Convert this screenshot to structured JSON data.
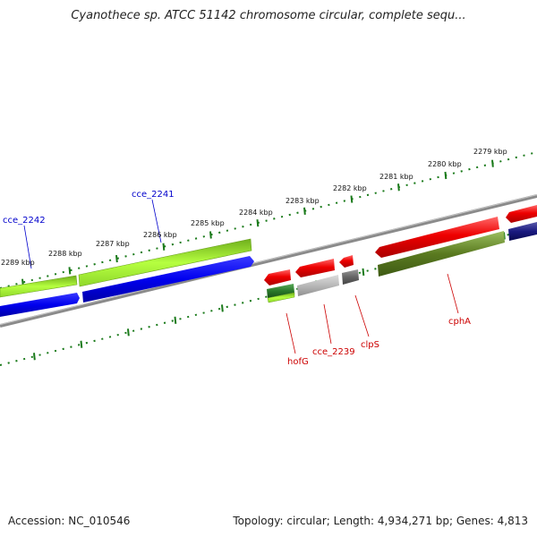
{
  "title": "Cyanothece sp. ATCC 51142 chromosome circular, complete sequ...",
  "footer": {
    "accession": "Accession: NC_010546",
    "summary": "Topology: circular; Length: 4,934,271 bp; Genes: 4,813"
  },
  "scale_labels": [
    "2279 kbp",
    "2280 kbp",
    "2281 kbp",
    "2282 kbp",
    "2283 kbp",
    "2284 kbp",
    "2285 kbp",
    "2286 kbp",
    "2287 kbp",
    "2288 kbp",
    "2289 kbp"
  ],
  "gene_labels": [
    {
      "name": "cce_2242",
      "strand": "forward"
    },
    {
      "name": "cce_2241",
      "strand": "forward"
    },
    {
      "name": "hofG",
      "strand": "reverse"
    },
    {
      "name": "cce_2239",
      "strand": "reverse"
    },
    {
      "name": "clpS",
      "strand": "reverse"
    },
    {
      "name": "cphA",
      "strand": "reverse"
    }
  ],
  "colors": {
    "backbone": "#8a8a8a",
    "tick_green": "#1a7a1a",
    "forward_label": "#0000cc",
    "reverse_label": "#cc0000",
    "red_feature": "#ee0000",
    "lime_feature": "#a8f030",
    "blue_feature": "#0000ee",
    "olive_feature": "#5a7a20",
    "grey_feature": "#b8b8b8",
    "dark_grey_feature": "#666666",
    "dark_green_feature": "#2a7a2a",
    "navy_feature": "#1a1a80"
  }
}
